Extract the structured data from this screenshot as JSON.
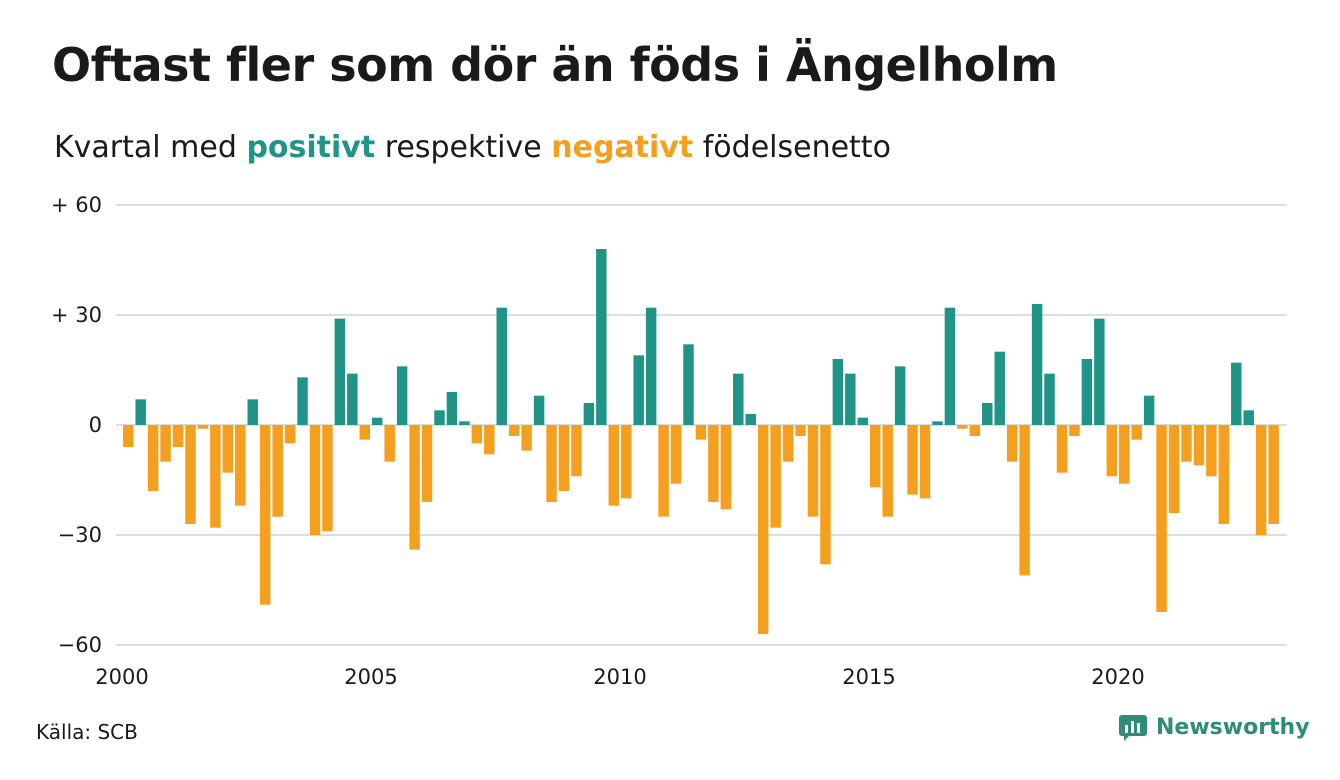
{
  "title": "Oftast fler som dör än föds i Ängelholm",
  "subtitle": {
    "prefix": "Kvartal med",
    "positive": "positivt",
    "middle": "respektive",
    "negative": "negativt",
    "suffix": "födelsenetto"
  },
  "source": "Källa: SCB",
  "brand": {
    "name": "Newsworthy",
    "icon": "newsworthy-logo-icon",
    "color": "#2e8d77"
  },
  "colors": {
    "positive": "#1f9487",
    "negative": "#f59f1e",
    "grid": "#dddddd"
  },
  "chart_data": {
    "type": "bar",
    "title": "Oftast fler som dör än föds i Ängelholm",
    "subtitle": "Kvartal med positivt respektive negativt födelsenetto",
    "xlabel": "",
    "ylabel": "",
    "ylim": [
      -60,
      60
    ],
    "yticks": [
      {
        "value": 60,
        "label": "+ 60"
      },
      {
        "value": 30,
        "label": "+ 30"
      },
      {
        "value": 0,
        "label": "0"
      },
      {
        "value": -30,
        "label": "−30"
      },
      {
        "value": -60,
        "label": "−60"
      }
    ],
    "xticks": [
      {
        "value": 2000,
        "label": "2000"
      },
      {
        "value": 2005,
        "label": "2005"
      },
      {
        "value": 2010,
        "label": "2010"
      },
      {
        "value": 2015,
        "label": "2015"
      },
      {
        "value": 2020,
        "label": "2020"
      }
    ],
    "grid": true,
    "start_year": 2000,
    "values": [
      -6,
      7,
      -18,
      -10,
      -6,
      -27,
      -1,
      -28,
      -13,
      -22,
      7,
      -49,
      -25,
      -5,
      13,
      -30,
      -29,
      29,
      14,
      -4,
      2,
      -10,
      16,
      -34,
      -21,
      4,
      9,
      1,
      -5,
      -8,
      32,
      -3,
      -7,
      8,
      -21,
      -18,
      -14,
      6,
      48,
      -22,
      -20,
      19,
      32,
      -25,
      -16,
      22,
      -4,
      -21,
      -23,
      14,
      3,
      -57,
      -28,
      -10,
      -3,
      -25,
      -38,
      18,
      14,
      2,
      -17,
      -25,
      16,
      -19,
      -20,
      1,
      32,
      -1,
      -3,
      6,
      20,
      -10,
      -41,
      33,
      14,
      -13,
      -3,
      18,
      29,
      -14,
      -16,
      -4,
      8,
      -51,
      -24,
      -10,
      -11,
      -14,
      -27,
      17,
      4,
      -30,
      -27
    ]
  }
}
